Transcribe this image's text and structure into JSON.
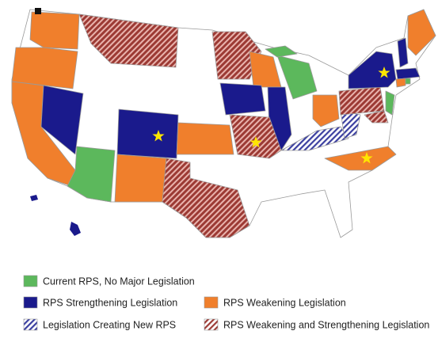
{
  "legend": {
    "items": [
      {
        "label": "Current RPS, No Major Legislation",
        "color": "#5cb85c",
        "pattern": "solid"
      },
      {
        "label": "RPS Strengthening Legislation",
        "color": "#1a1a8c",
        "pattern": "solid"
      },
      {
        "label": "RPS Weakening Legislation",
        "color": "#f07f2c",
        "pattern": "solid"
      },
      {
        "label": "Legislation Creating New RPS",
        "color": "#3b3fa0",
        "pattern": "hatch"
      },
      {
        "label": "RPS Weakening and Strengthening Legislation",
        "color": "#9c3a34",
        "pattern": "hatch"
      }
    ]
  }
}
